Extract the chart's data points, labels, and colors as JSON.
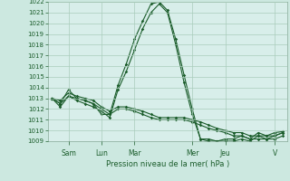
{
  "background_color": "#cce8e0",
  "plot_bg_color": "#d8eeea",
  "grid_color": "#aaccbb",
  "line_color": "#1a5c2a",
  "title": "Pression niveau de la mer( hPa )",
  "ylim": [
    1009,
    1022
  ],
  "yticks": [
    1009,
    1010,
    1011,
    1012,
    1013,
    1014,
    1015,
    1016,
    1017,
    1018,
    1019,
    1020,
    1021,
    1022
  ],
  "day_labels": [
    "Sam",
    "Lun",
    "Mar",
    "Mer",
    "Jeu",
    "V"
  ],
  "series1": [
    1013.0,
    1012.5,
    1013.8,
    1013.0,
    1012.8,
    1012.5,
    1011.5,
    1011.5,
    1014.2,
    1016.2,
    1018.5,
    1020.2,
    1021.8,
    1022.0,
    1021.2,
    1018.5,
    1015.2,
    1012.0,
    1009.2,
    1009.2,
    1009.0,
    1009.2,
    1009.2,
    1009.5,
    1009.2,
    1009.8,
    1009.5,
    1009.8,
    1009.9
  ],
  "series2": [
    1013.0,
    1012.2,
    1013.2,
    1012.8,
    1012.5,
    1012.2,
    1011.8,
    1011.2,
    1013.8,
    1015.5,
    1017.5,
    1019.5,
    1021.0,
    1021.8,
    1021.0,
    1018.0,
    1014.5,
    1011.5,
    1009.2,
    1009.0,
    1009.0,
    1009.0,
    1009.0,
    1009.2,
    1009.0,
    1009.5,
    1009.2,
    1009.5,
    1009.8
  ],
  "series3": [
    1013.0,
    1012.8,
    1013.5,
    1013.2,
    1013.0,
    1012.8,
    1012.2,
    1011.8,
    1012.2,
    1012.2,
    1012.0,
    1011.8,
    1011.5,
    1011.2,
    1011.2,
    1011.2,
    1011.2,
    1011.0,
    1010.8,
    1010.5,
    1010.2,
    1010.0,
    1009.8,
    1009.8,
    1009.5,
    1009.5,
    1009.5,
    1009.5,
    1009.8
  ],
  "series4": [
    1013.0,
    1012.5,
    1013.2,
    1013.0,
    1012.8,
    1012.5,
    1012.0,
    1011.5,
    1012.0,
    1012.0,
    1011.8,
    1011.5,
    1011.2,
    1011.0,
    1011.0,
    1011.0,
    1011.0,
    1010.8,
    1010.5,
    1010.2,
    1010.0,
    1009.8,
    1009.5,
    1009.5,
    1009.2,
    1009.2,
    1009.2,
    1009.2,
    1009.5
  ]
}
